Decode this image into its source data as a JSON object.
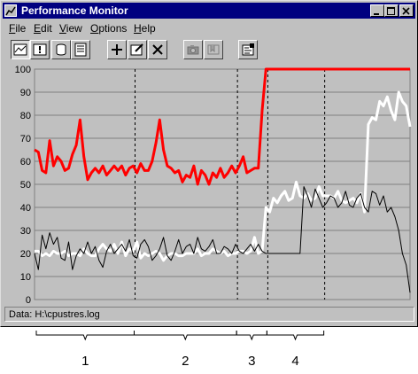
{
  "window": {
    "title": "Performance Monitor",
    "title_bar_color": "#000080"
  },
  "menu": {
    "items": [
      {
        "label": "File",
        "mnemonic": "F",
        "rest": "ile"
      },
      {
        "label": "Edit",
        "mnemonic": "E",
        "rest": "dit"
      },
      {
        "label": "View",
        "mnemonic": "V",
        "rest": "iew"
      },
      {
        "label": "Options",
        "mnemonic": "O",
        "rest": "ptions"
      },
      {
        "label": "Help",
        "mnemonic": "H",
        "rest": "elp"
      }
    ]
  },
  "toolbar": {
    "buttons": [
      {
        "icon": "chart-view-icon",
        "pressed": true
      },
      {
        "icon": "alert-view-icon",
        "pressed": false
      },
      {
        "icon": "log-view-icon",
        "pressed": false
      },
      {
        "icon": "report-view-icon",
        "pressed": false
      },
      {
        "icon": "add-counter-icon",
        "pressed": false
      },
      {
        "icon": "edit-counter-icon",
        "pressed": false
      },
      {
        "icon": "delete-counter-icon",
        "pressed": false
      },
      {
        "icon": "update-now-icon",
        "pressed": false
      },
      {
        "icon": "bookmark-icon",
        "pressed": false
      },
      {
        "icon": "options-icon",
        "pressed": false
      }
    ]
  },
  "status": {
    "label": "Data: H:\\cpustres.log"
  },
  "chart_data": {
    "type": "line",
    "ylim": [
      0,
      100
    ],
    "yticks": [
      "100",
      "90",
      "80",
      "70",
      "60",
      "50",
      "40",
      "30",
      "20",
      "10",
      "0"
    ],
    "grid": true,
    "background": "#c0c0c0",
    "x": [
      0,
      1,
      2,
      3,
      4,
      5,
      6,
      7,
      8,
      9,
      10,
      11,
      12,
      13,
      14,
      15,
      16,
      17,
      18,
      19,
      20,
      21,
      22,
      23,
      24,
      25,
      26,
      27,
      28,
      29,
      30,
      31,
      32,
      33,
      34,
      35,
      36,
      37,
      38,
      39,
      40,
      41,
      42,
      43,
      44,
      45,
      46,
      47,
      48,
      49,
      50,
      51,
      52,
      53,
      54,
      55,
      56,
      57,
      58,
      59,
      60,
      61,
      62,
      63,
      64,
      65,
      66,
      67,
      68,
      69,
      70,
      71,
      72,
      73,
      74,
      75,
      76,
      77,
      78,
      79,
      80,
      81,
      82,
      83,
      84,
      85,
      86,
      87,
      88,
      89,
      90,
      91,
      92,
      93,
      94,
      95,
      96,
      97,
      98,
      99
    ],
    "series": [
      {
        "color": "#ff0000",
        "values": [
          65,
          64,
          56,
          55,
          69,
          58,
          62,
          60,
          56,
          57,
          63,
          67,
          78,
          62,
          52,
          55,
          57,
          55,
          58,
          54,
          56,
          58,
          56,
          58,
          54,
          57,
          58,
          55,
          59,
          56,
          56,
          60,
          68,
          78,
          65,
          58,
          57,
          55,
          56,
          51,
          54,
          53,
          58,
          50,
          56,
          54,
          50,
          55,
          53,
          57,
          53,
          55,
          58,
          55,
          58,
          62,
          55,
          56,
          57,
          57,
          82,
          100,
          100,
          100,
          100,
          100,
          100,
          100,
          100,
          100,
          100,
          100,
          100,
          100,
          100,
          100,
          100,
          100,
          100,
          100,
          100,
          100,
          100,
          100,
          100,
          100,
          100,
          100,
          100,
          100,
          100,
          100,
          100,
          100,
          100,
          100,
          100,
          100,
          100,
          100
        ]
      },
      {
        "color": "#ffffff",
        "values": [
          21,
          21,
          19,
          20,
          19,
          21,
          20,
          20,
          21,
          19,
          20,
          20,
          19,
          22,
          20,
          19,
          19,
          22,
          24,
          22,
          21,
          24,
          20,
          25,
          19,
          22,
          21,
          25,
          18,
          20,
          19,
          20,
          21,
          20,
          17,
          19,
          20,
          20,
          19,
          19,
          20,
          20,
          20,
          22,
          19,
          20,
          20,
          22,
          21,
          20,
          21,
          19,
          20,
          20,
          21,
          21,
          20,
          21,
          27,
          20,
          21,
          40,
          38,
          44,
          42,
          45,
          47,
          43,
          44,
          51,
          45,
          44,
          46,
          43,
          44,
          49,
          45,
          45,
          45,
          44,
          47,
          43,
          42,
          43,
          44,
          42,
          46,
          38,
          76,
          79,
          78,
          86,
          84,
          88,
          82,
          78,
          90,
          86,
          84,
          75
        ]
      },
      {
        "color": "#000000",
        "values": [
          20,
          13,
          28,
          22,
          29,
          24,
          27,
          18,
          17,
          25,
          13,
          19,
          22,
          20,
          25,
          20,
          23,
          17,
          14,
          21,
          24,
          20,
          22,
          24,
          21,
          26,
          19,
          18,
          24,
          26,
          23,
          17,
          19,
          22,
          27,
          19,
          17,
          21,
          26,
          20,
          23,
          24,
          20,
          27,
          22,
          21,
          23,
          26,
          20,
          20,
          23,
          22,
          20,
          24,
          21,
          20,
          22,
          24,
          21,
          24,
          21,
          20,
          20,
          20,
          20,
          20,
          20,
          20,
          20,
          20,
          20,
          49,
          45,
          40,
          48,
          44,
          40,
          42,
          45,
          44,
          40,
          42,
          47,
          41,
          40,
          44,
          46,
          40,
          38,
          47,
          46,
          41,
          45,
          38,
          40,
          36,
          30,
          20,
          15,
          3
        ]
      }
    ],
    "phase_markers": [
      {
        "after_index": 26,
        "label": "1"
      },
      {
        "after_index": 53,
        "label": "2"
      },
      {
        "after_index": 61,
        "label": "3"
      },
      {
        "after_index": 76,
        "label": "4"
      }
    ],
    "phase_labels": [
      "1",
      "2",
      "3",
      "4"
    ]
  }
}
